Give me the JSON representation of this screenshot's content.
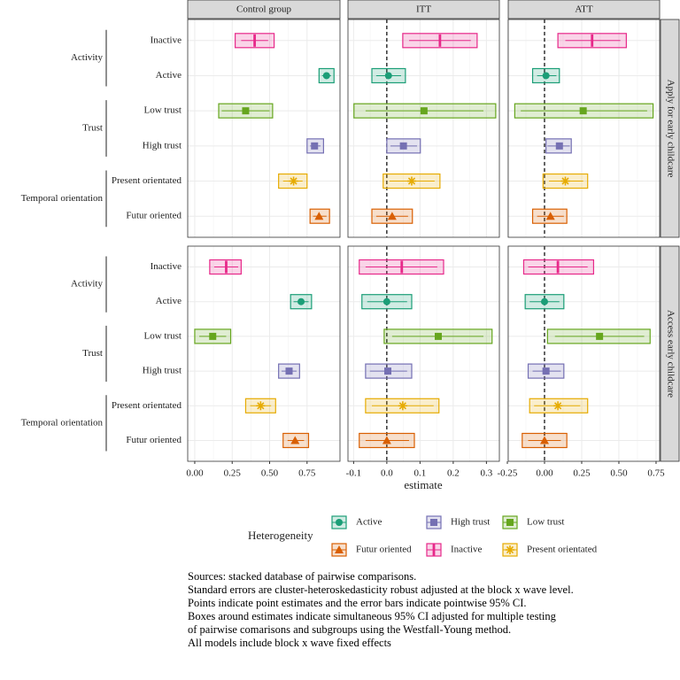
{
  "chart_data": {
    "type": "forest",
    "xlabel": "estimate",
    "legend_title": "Heterogeneity",
    "grid": true,
    "categories": [
      "Inactive",
      "Active",
      "Low trust",
      "High trust",
      "Present orientated",
      "Futur oriented"
    ],
    "groups": [
      {
        "label": "Activity",
        "members": [
          "Inactive",
          "Active"
        ]
      },
      {
        "label": "Trust",
        "members": [
          "Low trust",
          "High trust"
        ]
      },
      {
        "label": "Temporal orientation",
        "members": [
          "Present orientated",
          "Futur oriented"
        ]
      }
    ],
    "series": [
      {
        "name": "Active",
        "color": "#1b9e77",
        "shape": "circle"
      },
      {
        "name": "Futur oriented",
        "color": "#d95f02",
        "shape": "triangle"
      },
      {
        "name": "High trust",
        "color": "#7570b3",
        "shape": "square"
      },
      {
        "name": "Inactive",
        "color": "#e7298a",
        "shape": "bar"
      },
      {
        "name": "Low trust",
        "color": "#66a61e",
        "shape": "square"
      },
      {
        "name": "Present orientated",
        "color": "#e6ab02",
        "shape": "asterisk"
      }
    ],
    "columns": [
      {
        "name": "Control group",
        "xlim": [
          -0.047,
          0.97
        ],
        "xticks": [
          {
            "value": 0,
            "label": "0.00"
          },
          0.25,
          {
            "value": 0.5,
            "label": "0.50"
          },
          0.75
        ]
      },
      {
        "name": "ITT",
        "xlim": [
          -0.117,
          0.339
        ],
        "reference_line": 0,
        "xticks": [
          -0.1,
          {
            "value": 0,
            "label": "0.0"
          },
          0.1,
          0.2,
          0.3
        ]
      },
      {
        "name": "ATT",
        "xlim": [
          -0.244,
          0.774
        ],
        "reference_line": 0,
        "xticks": [
          -0.25,
          {
            "value": 0,
            "label": "0.00"
          },
          0.25,
          {
            "value": 0.5,
            "label": "0.50"
          },
          0.75
        ]
      }
    ],
    "rows": [
      "Apply for early childcare",
      "Access early childcare"
    ],
    "panels": [
      [
        {
          "estimate": [
            0.4,
            0.88,
            0.34,
            0.8,
            0.66,
            0.83
          ],
          "ci_low": [
            0.31,
            0.85,
            0.18,
            0.77,
            0.59,
            0.79
          ],
          "ci_high": [
            0.49,
            0.91,
            0.5,
            0.84,
            0.72,
            0.88
          ],
          "box_low": [
            0.27,
            0.83,
            0.16,
            0.75,
            0.56,
            0.77
          ],
          "box_high": [
            0.53,
            0.93,
            0.52,
            0.86,
            0.75,
            0.9
          ]
        },
        {
          "estimate": [
            0.16,
            0.005,
            0.112,
            0.05,
            0.075,
            0.016
          ],
          "ci_low": [
            0.067,
            -0.032,
            -0.064,
            0.011,
            0.008,
            -0.032
          ],
          "ci_high": [
            0.253,
            0.043,
            0.291,
            0.091,
            0.144,
            0.064
          ],
          "box_low": [
            0.048,
            -0.045,
            -0.099,
            0.0,
            -0.011,
            -0.045
          ],
          "box_high": [
            0.272,
            0.056,
            0.328,
            0.101,
            0.16,
            0.077
          ]
        },
        {
          "estimate": [
            0.32,
            0.01,
            0.26,
            0.1,
            0.14,
            0.04
          ],
          "ci_low": [
            0.14,
            -0.05,
            -0.16,
            0.02,
            0.03,
            -0.05
          ],
          "ci_high": [
            0.51,
            0.08,
            0.69,
            0.17,
            0.26,
            0.13
          ],
          "box_low": [
            0.09,
            -0.08,
            -0.2,
            0.01,
            -0.01,
            -0.08
          ],
          "box_high": [
            0.55,
            0.1,
            0.73,
            0.18,
            0.29,
            0.15
          ]
        }
      ],
      [
        {
          "estimate": [
            0.21,
            0.71,
            0.12,
            0.63,
            0.44,
            0.67
          ],
          "ci_low": [
            0.13,
            0.66,
            0.03,
            0.58,
            0.37,
            0.62
          ],
          "ci_high": [
            0.29,
            0.76,
            0.21,
            0.68,
            0.51,
            0.73
          ],
          "box_low": [
            0.1,
            0.64,
            0.0,
            0.56,
            0.34,
            0.59
          ],
          "box_high": [
            0.31,
            0.78,
            0.24,
            0.7,
            0.54,
            0.76
          ]
        },
        {
          "estimate": [
            0.045,
            0.0,
            0.155,
            0.003,
            0.048,
            0.0
          ],
          "ci_low": [
            -0.064,
            -0.059,
            0.016,
            -0.051,
            -0.045,
            -0.064
          ],
          "ci_high": [
            0.152,
            0.061,
            0.291,
            0.061,
            0.141,
            0.067
          ],
          "box_low": [
            -0.083,
            -0.075,
            -0.008,
            -0.064,
            -0.064,
            -0.083
          ],
          "box_high": [
            0.171,
            0.075,
            0.317,
            0.075,
            0.157,
            0.083
          ]
        },
        {
          "estimate": [
            0.09,
            0.0,
            0.37,
            0.01,
            0.09,
            0.0
          ],
          "ci_low": [
            -0.11,
            -0.1,
            0.07,
            -0.08,
            -0.07,
            -0.11
          ],
          "ci_high": [
            0.29,
            0.1,
            0.67,
            0.11,
            0.24,
            0.11
          ],
          "box_low": [
            -0.14,
            -0.13,
            0.02,
            -0.11,
            -0.1,
            -0.15
          ],
          "box_high": [
            0.33,
            0.13,
            0.71,
            0.13,
            0.29,
            0.15
          ]
        }
      ]
    ],
    "notes": [
      "Sources: stacked database of pairwise comparisons.",
      "Standard errors are cluster-heteroskedasticity robust adjusted at the block x wave level.",
      "Points indicate point estimates and the error bars indicate pointwise 95% CI.",
      "Boxes around estimates indicate simultaneous 95% CI adjusted for multiple testing",
      "of pairwise comarisons and subgroups using the Westfall-Young method.",
      "All models include block x wave fixed effects"
    ]
  }
}
